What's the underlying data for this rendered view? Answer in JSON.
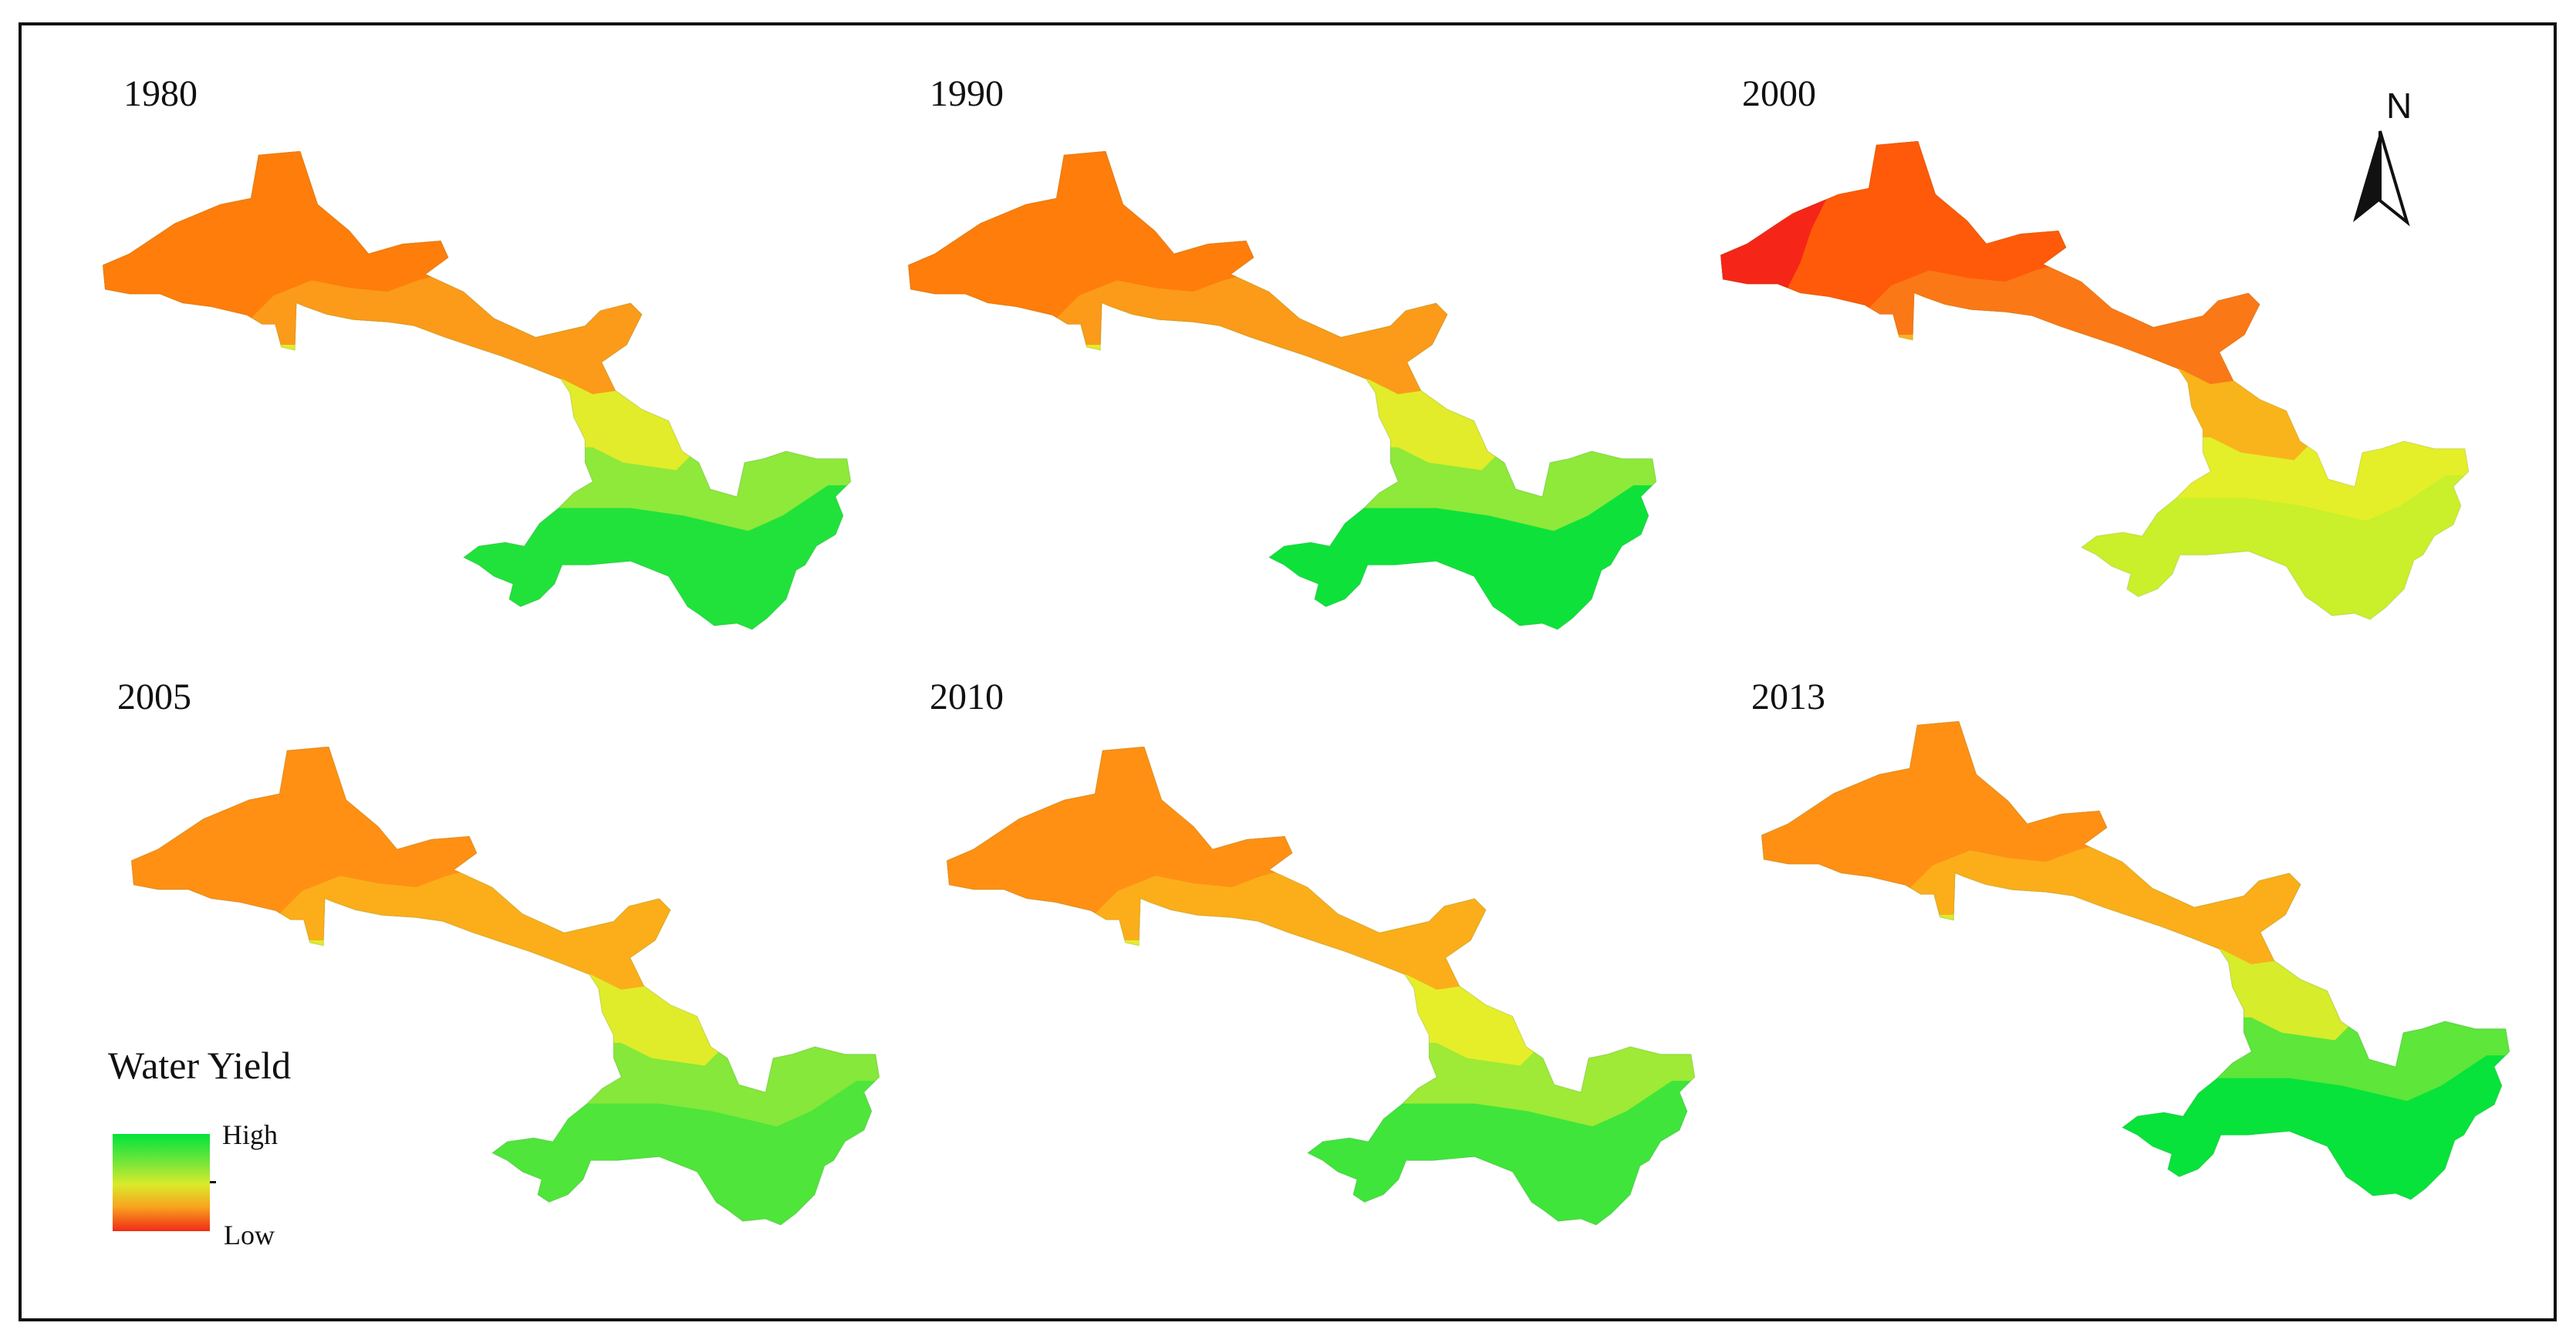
{
  "panels": [
    {
      "year": "1980",
      "palette": [
        "#ff7d0a",
        "#fb9b19",
        "#e2ec2a",
        "#8ee93a",
        "#21e23b"
      ],
      "dark_patch": null
    },
    {
      "year": "1990",
      "palette": [
        "#ff7d0a",
        "#fb9b19",
        "#e2ec2a",
        "#8ee93a",
        "#0ee23a"
      ],
      "dark_patch": null
    },
    {
      "year": "2000",
      "palette": [
        "#ff5a09",
        "#fb7816",
        "#f9b41c",
        "#e4ef29",
        "#c9f02a"
      ],
      "dark_patch": "#f52618"
    },
    {
      "year": "2005",
      "palette": [
        "#ff9014",
        "#fbae1a",
        "#e0ec2a",
        "#85e83a",
        "#4fe53a"
      ],
      "dark_patch": null
    },
    {
      "year": "2010",
      "palette": [
        "#ff9014",
        "#fbae1a",
        "#e6ee2a",
        "#9eea36",
        "#3fe53a"
      ],
      "dark_patch": null
    },
    {
      "year": "2013",
      "palette": [
        "#ff9014",
        "#fbae1a",
        "#d7ec2b",
        "#5ee63a",
        "#07e33a"
      ],
      "dark_patch": null
    }
  ],
  "legend": {
    "title": "Water Yield",
    "high_label": "High",
    "low_label": "Low"
  },
  "north_arrow": {
    "label": "N"
  }
}
